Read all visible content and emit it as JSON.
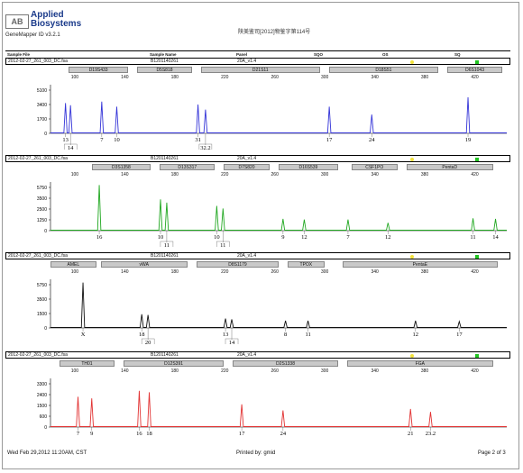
{
  "header": {
    "logo_mark": "AB",
    "brand_line1": "Applied",
    "brand_line2": "Biosystems",
    "app_version": "GeneMapper ID v3.2.1",
    "cert_text": "陕美鉴司[2012]物鉴字第114号"
  },
  "columns": {
    "sample_file": "Sample File",
    "sample_name": "Sample Name",
    "panel": "Panel",
    "sqo": "SQO",
    "os": "OS",
    "sq": "SQ"
  },
  "colors": {
    "blue": "#3535d8",
    "green": "#22a822",
    "black": "#111111",
    "red": "#e23333",
    "os_flag": "#f2e23a",
    "sq_flag": "#22c422"
  },
  "sample": {
    "file": "2012-02-27_261_003_DC.fsa",
    "name": "B1201140261",
    "panel": "20A_v1.4"
  },
  "size_ticks": [
    "100",
    "140",
    "180",
    "220",
    "260",
    "300",
    "340",
    "380",
    "420"
  ],
  "footer": {
    "date": "Wed Feb 29,2012 11:20AM, CST",
    "printed_by": "Printed by: gmid",
    "page": "Page 2 of 3"
  },
  "chart_data": [
    {
      "type": "line",
      "dye": "blue",
      "x_axis": "size (bp)",
      "xlim": [
        80,
        445
      ],
      "ylim": [
        0,
        6500
      ],
      "yticks": [
        "5100",
        "3400",
        "1700",
        "0"
      ],
      "loci": [
        "D19S433",
        "D5S818",
        "D21S11",
        "D18S51",
        "D6S1043"
      ],
      "peaks": [
        {
          "x": 92,
          "y": 4200,
          "label": "13"
        },
        {
          "x": 96,
          "y": 3900,
          "label": "14"
        },
        {
          "x": 121,
          "y": 4400,
          "label": "7"
        },
        {
          "x": 133,
          "y": 3700,
          "label": "10"
        },
        {
          "x": 198,
          "y": 4000,
          "label": "31"
        },
        {
          "x": 204,
          "y": 3300,
          "label": "32.2"
        },
        {
          "x": 303,
          "y": 3700,
          "label": "17"
        },
        {
          "x": 337,
          "y": 2600,
          "label": "24"
        },
        {
          "x": 414,
          "y": 5000,
          "label": "19"
        }
      ]
    },
    {
      "type": "line",
      "dye": "green",
      "x_axis": "size (bp)",
      "xlim": [
        80,
        445
      ],
      "ylim": [
        0,
        7200
      ],
      "yticks": [
        "5750",
        "3500",
        "2500",
        "1250",
        "0"
      ],
      "loci": [
        "D3S1358",
        "D13S317",
        "D7S820",
        "D16S539",
        "CSF1PO",
        "PentaD"
      ],
      "peaks": [
        {
          "x": 119,
          "y": 7000,
          "label": "16"
        },
        {
          "x": 168,
          "y": 4800,
          "label": "10"
        },
        {
          "x": 173,
          "y": 4300,
          "label": "11"
        },
        {
          "x": 213,
          "y": 3800,
          "label": "10"
        },
        {
          "x": 218,
          "y": 3400,
          "label": "11"
        },
        {
          "x": 266,
          "y": 1800,
          "label": "9"
        },
        {
          "x": 283,
          "y": 1700,
          "label": "12"
        },
        {
          "x": 318,
          "y": 1700,
          "label": "7"
        },
        {
          "x": 350,
          "y": 1200,
          "label": "12"
        },
        {
          "x": 418,
          "y": 1900,
          "label": "11"
        },
        {
          "x": 436,
          "y": 1800,
          "label": "14"
        }
      ]
    },
    {
      "type": "line",
      "dye": "black",
      "x_axis": "size (bp)",
      "xlim": [
        80,
        445
      ],
      "ylim": [
        0,
        6500
      ],
      "yticks": [
        "5750",
        "3500",
        "1500",
        "0"
      ],
      "loci": [
        "AMEL",
        "vWA",
        "D8S1179",
        "TPOX",
        "PentaE"
      ],
      "peaks": [
        {
          "x": 106,
          "y": 6300,
          "label": "X"
        },
        {
          "x": 153,
          "y": 1900,
          "label": "18"
        },
        {
          "x": 158,
          "y": 1800,
          "label": "20"
        },
        {
          "x": 220,
          "y": 1300,
          "label": "13"
        },
        {
          "x": 225,
          "y": 1200,
          "label": "14"
        },
        {
          "x": 268,
          "y": 1000,
          "label": "8"
        },
        {
          "x": 286,
          "y": 1000,
          "label": "11"
        },
        {
          "x": 372,
          "y": 1000,
          "label": "12"
        },
        {
          "x": 407,
          "y": 900,
          "label": "17"
        }
      ]
    },
    {
      "type": "line",
      "dye": "red",
      "x_axis": "size (bp)",
      "xlim": [
        80,
        445
      ],
      "ylim": [
        0,
        3100
      ],
      "yticks": [
        "3300",
        "2400",
        "1500",
        "600",
        "0"
      ],
      "loci": [
        "TH01",
        "D12S391",
        "D2S1338",
        "FGA"
      ],
      "peaks": [
        {
          "x": 102,
          "y": 2000,
          "label": "7"
        },
        {
          "x": 113,
          "y": 1900,
          "label": "9"
        },
        {
          "x": 151,
          "y": 2400,
          "label": "16"
        },
        {
          "x": 159,
          "y": 2300,
          "label": "18"
        },
        {
          "x": 233,
          "y": 1500,
          "label": "17"
        },
        {
          "x": 266,
          "y": 1100,
          "label": "24"
        },
        {
          "x": 368,
          "y": 1200,
          "label": "21"
        },
        {
          "x": 384,
          "y": 1000,
          "label": "23.2"
        }
      ]
    }
  ]
}
